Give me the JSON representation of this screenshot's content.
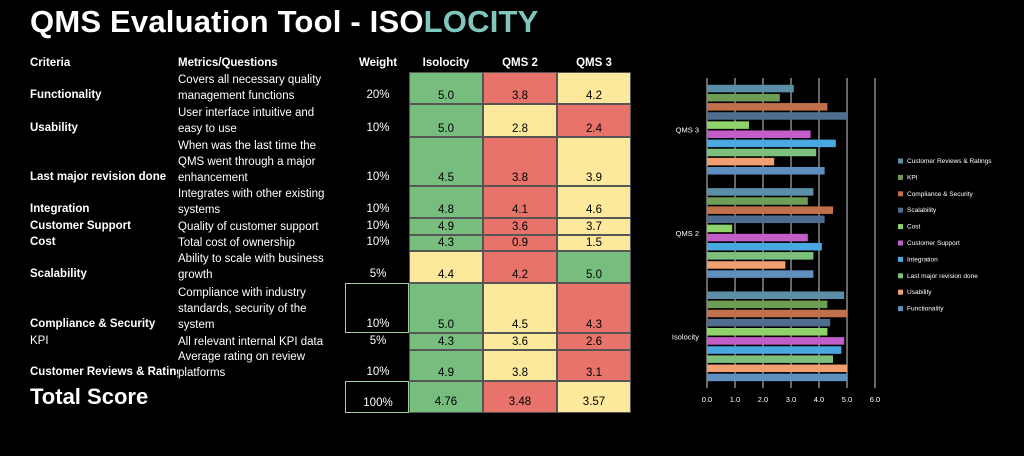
{
  "title": {
    "prefix": "QMS Evaluation Tool - ISO",
    "accent": "LOCITY",
    "accent_color": "#7fc7bd"
  },
  "table": {
    "headers": {
      "criteria": "Criteria",
      "metrics": "Metrics/Questions",
      "weight": "Weight",
      "isolocity": "Isolocity",
      "qms2": "QMS 2",
      "qms3": "QMS 3"
    },
    "rows": [
      {
        "criteria": "Functionality",
        "bold": true,
        "metric_lines": [
          "Covers all necessary quality",
          "management functions"
        ],
        "weight": "20%",
        "scores": [
          "5.0",
          "3.8",
          "4.2"
        ],
        "colors": [
          "g",
          "r",
          "y"
        ]
      },
      {
        "criteria": "Usability",
        "bold": true,
        "metric_lines": [
          "User interface intuitive and",
          "easy to use"
        ],
        "weight": "10%",
        "scores": [
          "5.0",
          "2.8",
          "2.4"
        ],
        "colors": [
          "g",
          "y",
          "r"
        ]
      },
      {
        "criteria": "Last major revision done",
        "bold": true,
        "metric_lines": [
          "When was the last time the",
          "QMS went through a major",
          "enhancement"
        ],
        "weight": "10%",
        "scores": [
          "4.5",
          "3.8",
          "3.9"
        ],
        "colors": [
          "g",
          "r",
          "y"
        ]
      },
      {
        "criteria": "Integration",
        "bold": true,
        "metric_lines": [
          "Integrates with other existing",
          "systems"
        ],
        "weight": "10%",
        "scores": [
          "4.8",
          "4.1",
          "4.6"
        ],
        "colors": [
          "g",
          "r",
          "y"
        ]
      },
      {
        "criteria": "Customer Support",
        "bold": true,
        "metric_lines": [
          "Quality of customer support"
        ],
        "weight": "10%",
        "scores": [
          "4.9",
          "3.6",
          "3.7"
        ],
        "colors": [
          "g",
          "r",
          "y"
        ]
      },
      {
        "criteria": "Cost",
        "bold": true,
        "metric_lines": [
          "Total cost of ownership"
        ],
        "weight": "10%",
        "scores": [
          "4.3",
          "0.9",
          "1.5"
        ],
        "colors": [
          "g",
          "r",
          "y"
        ]
      },
      {
        "criteria": "Scalability",
        "bold": true,
        "metric_lines": [
          "Ability to scale with business",
          "growth"
        ],
        "weight": "5%",
        "scores": [
          "4.4",
          "4.2",
          "5.0"
        ],
        "colors": [
          "y",
          "r",
          "g"
        ]
      },
      {
        "criteria": "Compliance & Security",
        "bold": true,
        "metric_lines": [
          "Compliance with industry",
          "standards, security of the",
          "system"
        ],
        "weight": "10%",
        "scores": [
          "5.0",
          "4.5",
          "4.3"
        ],
        "colors": [
          "g",
          "y",
          "r"
        ]
      },
      {
        "criteria": "KPI",
        "bold": false,
        "metric_lines": [
          "All relevant internal KPI data"
        ],
        "weight": "5%",
        "scores": [
          "4.3",
          "3.6",
          "2.6"
        ],
        "colors": [
          "g",
          "y",
          "r"
        ]
      },
      {
        "criteria": "Customer Reviews & Ratings",
        "bold": true,
        "metric_lines": [
          "Average rating on review",
          "platforms"
        ],
        "weight": "10%",
        "scores": [
          "4.9",
          "3.8",
          "3.1"
        ],
        "colors": [
          "g",
          "y",
          "r"
        ]
      }
    ],
    "total": {
      "label": "Total Score",
      "weight": "100%",
      "scores": [
        "4.76",
        "3.48",
        "3.57"
      ],
      "colors": [
        "g",
        "r",
        "y"
      ]
    },
    "cell_colors": {
      "g": "#76bd7e",
      "r": "#e8736b",
      "y": "#fde99b"
    }
  },
  "chart_data": {
    "type": "bar",
    "orientation": "horizontal",
    "categories": [
      "QMS 3",
      "QMS 2",
      "Isolocity"
    ],
    "xlim": [
      0,
      6
    ],
    "xticks": [
      "0.0",
      "1.0",
      "2.0",
      "3.0",
      "4.0",
      "5.0",
      "6.0"
    ],
    "grid": true,
    "legend_position": "right",
    "series": [
      {
        "name": "Customer Reviews & Ratings",
        "color": "#5b8fa8",
        "values": [
          3.1,
          3.8,
          4.9
        ]
      },
      {
        "name": "KPI",
        "color": "#6e9e55",
        "values": [
          2.6,
          3.6,
          4.3
        ]
      },
      {
        "name": "Compliance & Security",
        "color": "#c0704a",
        "values": [
          4.3,
          4.5,
          5.0
        ]
      },
      {
        "name": "Scalability",
        "color": "#4f6d8f",
        "values": [
          5.0,
          4.2,
          4.4
        ]
      },
      {
        "name": "Cost",
        "color": "#8fd16a",
        "values": [
          1.5,
          0.9,
          4.3
        ]
      },
      {
        "name": "Customer Support",
        "color": "#c35ec9",
        "values": [
          3.7,
          3.6,
          4.9
        ]
      },
      {
        "name": "Integration",
        "color": "#4aa8e0",
        "values": [
          4.6,
          4.1,
          4.8
        ]
      },
      {
        "name": "Last major revision done",
        "color": "#7cc07c",
        "values": [
          3.9,
          3.8,
          4.5
        ]
      },
      {
        "name": "Usability",
        "color": "#f0a070",
        "values": [
          2.4,
          2.8,
          5.0
        ]
      },
      {
        "name": "Functionality",
        "color": "#5f8fbf",
        "values": [
          4.2,
          3.8,
          5.0
        ]
      }
    ]
  }
}
